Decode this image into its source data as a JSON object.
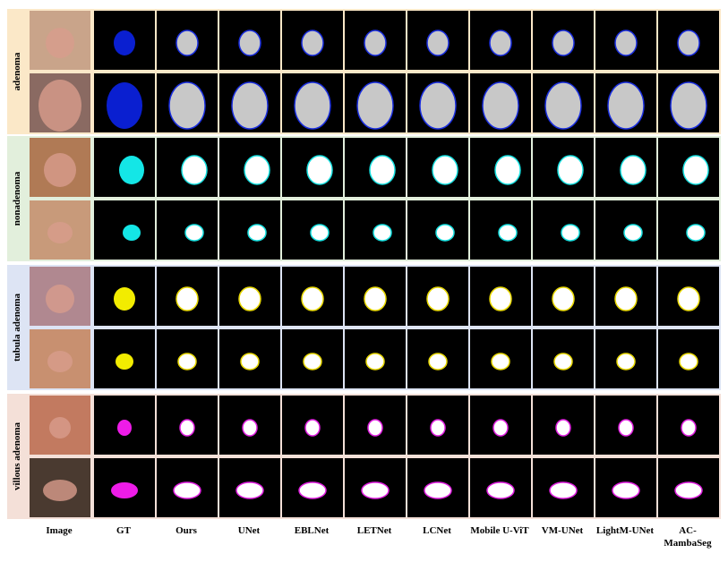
{
  "row_labels": [
    "adenoma",
    "nonadenoma",
    "tubula adenoma",
    "villous adenoma"
  ],
  "column_labels": [
    "Image",
    "GT",
    "Ours",
    "UNet",
    "EBLNet",
    "LETNet",
    "LCNet",
    "Mobile U-ViT",
    "VM-UNet",
    "LightM-UNet",
    "AC-MambaSeg"
  ]
}
